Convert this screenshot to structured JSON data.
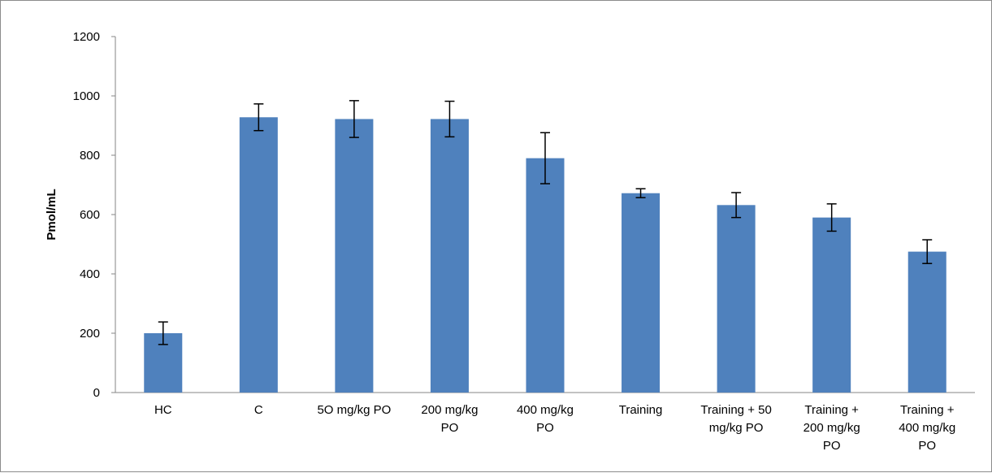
{
  "chart_data": {
    "type": "bar",
    "title": "",
    "xlabel": "",
    "ylabel": "Pmol/mL",
    "ylim": [
      0,
      1200
    ],
    "yticks": [
      0,
      200,
      400,
      600,
      800,
      1000,
      1200
    ],
    "grid": false,
    "legend": "none",
    "bar_color": "#4f81bd",
    "categories": [
      "HC",
      "C",
      "5O mg/kg PO",
      "200 mg/kg PO",
      "400 mg/kg PO",
      "Training",
      "Training + 50 mg/kg PO",
      "Training + 200 mg/kg PO",
      "Training + 400 mg/kg PO"
    ],
    "category_lines": [
      [
        "HC"
      ],
      [
        "C"
      ],
      [
        "5O mg/kg PO"
      ],
      [
        "200 mg/kg",
        "PO"
      ],
      [
        "400 mg/kg",
        "PO"
      ],
      [
        "Training"
      ],
      [
        "Training + 50",
        "mg/kg PO"
      ],
      [
        "Training +",
        "200 mg/kg",
        "PO"
      ],
      [
        "Training +",
        "400 mg/kg",
        "PO"
      ]
    ],
    "values": [
      200,
      928,
      922,
      922,
      790,
      672,
      632,
      590,
      475
    ],
    "errors": [
      38,
      45,
      62,
      60,
      86,
      15,
      42,
      46,
      40
    ]
  }
}
